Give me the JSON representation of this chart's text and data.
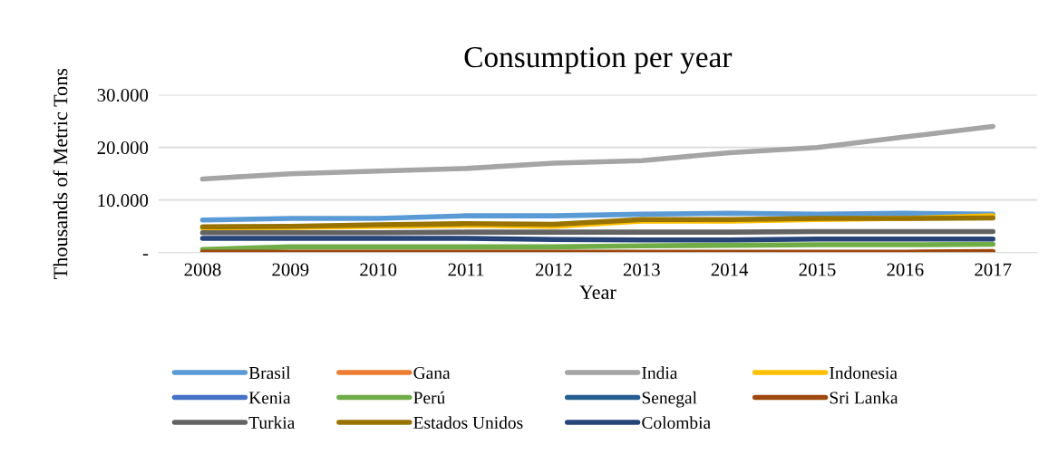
{
  "chart_data": {
    "type": "line",
    "title": "Consumption per year",
    "xlabel": "Year",
    "ylabel": "Thousands of Metric Tons",
    "categories": [
      "2008",
      "2009",
      "2010",
      "2011",
      "2012",
      "2013",
      "2014",
      "2015",
      "2016",
      "2017"
    ],
    "ylim": [
      0,
      30000
    ],
    "yticks": [
      {
        "value": 0,
        "label": "-"
      },
      {
        "value": 10000,
        "label": "10.000"
      },
      {
        "value": 20000,
        "label": "20.000"
      },
      {
        "value": 30000,
        "label": "30.000"
      }
    ],
    "grid": "y",
    "legend": "bottom",
    "marker": "none",
    "line_style": "solid",
    "series": [
      {
        "name": "Brasil",
        "color": "#5b9bd5",
        "values": [
          6200,
          6500,
          6500,
          7000,
          7000,
          7300,
          7500,
          7300,
          7500,
          7300
        ]
      },
      {
        "name": "Gana",
        "color": "#ed7d31",
        "values": [
          null,
          null,
          null,
          null,
          null,
          null,
          null,
          null,
          null,
          null
        ]
      },
      {
        "name": "India",
        "color": "#a5a5a5",
        "values": [
          14000,
          15000,
          15500,
          16000,
          17000,
          17500,
          19000,
          20000,
          22000,
          24000
        ]
      },
      {
        "name": "Indonesia",
        "color": "#ffc000",
        "values": [
          4700,
          4800,
          5000,
          5200,
          5000,
          6000,
          6000,
          6300,
          6500,
          7000
        ]
      },
      {
        "name": "Kenia",
        "color": "#4472c4",
        "values": [
          null,
          null,
          null,
          null,
          null,
          null,
          null,
          null,
          null,
          null
        ]
      },
      {
        "name": "Perú",
        "color": "#70ad47",
        "values": [
          600,
          1100,
          1100,
          1100,
          1100,
          1300,
          1400,
          1500,
          1500,
          1600
        ]
      },
      {
        "name": "Senegal",
        "color": "#255e91",
        "values": [
          null,
          null,
          null,
          null,
          null,
          null,
          null,
          null,
          null,
          null
        ]
      },
      {
        "name": "Sri Lanka",
        "color": "#9e480e",
        "values": [
          100,
          100,
          100,
          100,
          100,
          100,
          100,
          100,
          100,
          200
        ]
      },
      {
        "name": "Turkia",
        "color": "#636363",
        "values": [
          3800,
          3800,
          3800,
          3900,
          3900,
          3900,
          3900,
          4000,
          4000,
          4000
        ]
      },
      {
        "name": "Estados Unidos",
        "color": "#997300",
        "values": [
          4900,
          5000,
          5300,
          5500,
          5400,
          6300,
          6300,
          6500,
          6500,
          6600
        ]
      },
      {
        "name": "Colombia",
        "color": "#264478",
        "values": [
          2700,
          2700,
          2700,
          2700,
          2500,
          2400,
          2400,
          2600,
          2600,
          2600
        ]
      }
    ]
  }
}
